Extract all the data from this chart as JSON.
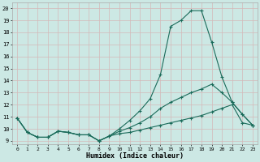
{
  "xlabel": "Humidex (Indice chaleur)",
  "bg_color": "#cce8e4",
  "grid_color": "#c0d8d4",
  "line_color": "#1a6b5a",
  "xlim": [
    -0.5,
    23.5
  ],
  "ylim": [
    8.7,
    20.5
  ],
  "xticks": [
    0,
    1,
    2,
    3,
    4,
    5,
    6,
    7,
    8,
    9,
    10,
    11,
    12,
    13,
    14,
    15,
    16,
    17,
    18,
    19,
    20,
    21,
    22,
    23
  ],
  "yticks": [
    9,
    10,
    11,
    12,
    13,
    14,
    15,
    16,
    17,
    18,
    19,
    20
  ],
  "line1_x": [
    0,
    1,
    2,
    3,
    4,
    5,
    6,
    7,
    8,
    9,
    10,
    11,
    12,
    13,
    14,
    15,
    16,
    17,
    18,
    19,
    20,
    21,
    22,
    23
  ],
  "line1_y": [
    10.9,
    9.7,
    9.3,
    9.3,
    9.8,
    9.7,
    9.5,
    9.5,
    9.0,
    9.4,
    10.0,
    10.7,
    11.5,
    12.5,
    14.5,
    18.5,
    19.0,
    19.8,
    19.8,
    17.2,
    14.3,
    12.2,
    11.2,
    10.3
  ],
  "line2_x": [
    0,
    1,
    2,
    3,
    4,
    5,
    6,
    7,
    8,
    9,
    10,
    11,
    12,
    13,
    14,
    15,
    16,
    17,
    18,
    19,
    20,
    21,
    22,
    23
  ],
  "line2_y": [
    10.9,
    9.7,
    9.3,
    9.3,
    9.8,
    9.7,
    9.5,
    9.5,
    9.0,
    9.4,
    9.8,
    10.1,
    10.5,
    11.0,
    11.7,
    12.2,
    12.6,
    13.0,
    13.3,
    13.7,
    13.0,
    12.2,
    11.2,
    10.3
  ],
  "line3_x": [
    0,
    1,
    2,
    3,
    4,
    5,
    6,
    7,
    8,
    9,
    10,
    11,
    12,
    13,
    14,
    15,
    16,
    17,
    18,
    19,
    20,
    21,
    22,
    23
  ],
  "line3_y": [
    10.9,
    9.7,
    9.3,
    9.3,
    9.8,
    9.7,
    9.5,
    9.5,
    9.0,
    9.4,
    9.6,
    9.7,
    9.9,
    10.1,
    10.3,
    10.5,
    10.7,
    10.9,
    11.1,
    11.4,
    11.7,
    12.0,
    10.5,
    10.3
  ]
}
